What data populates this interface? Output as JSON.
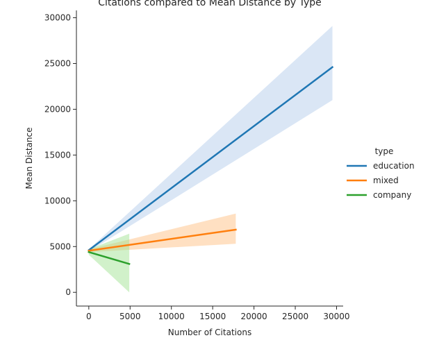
{
  "chart_data": {
    "type": "line",
    "title": "Citations compared to Mean Distance by Type",
    "xlabel": "Number of Citations",
    "ylabel": "Mean Distance",
    "xlim": [
      -1500,
      30800
    ],
    "ylim": [
      -1500,
      30800
    ],
    "x_ticks": [
      0,
      5000,
      10000,
      15000,
      20000,
      25000,
      30000
    ],
    "y_ticks": [
      0,
      5000,
      10000,
      15000,
      20000,
      25000,
      30000
    ],
    "x_tick_labels": [
      "0",
      "5000",
      "10000",
      "15000",
      "20000",
      "25000",
      "30000"
    ],
    "y_tick_labels": [
      "0",
      "5000",
      "10000",
      "15000",
      "20000",
      "25000",
      "30000"
    ],
    "grid": false,
    "legend": {
      "title": "type",
      "placement": "right"
    },
    "series": [
      {
        "name": "education",
        "color": "#1f77b4",
        "fill_color": "#aec7e8",
        "line": [
          [
            0,
            4600
          ],
          [
            29500,
            24600
          ]
        ],
        "band_upper": [
          [
            0,
            4700
          ],
          [
            29500,
            29100
          ]
        ],
        "band_lower": [
          [
            0,
            4450
          ],
          [
            29500,
            21000
          ]
        ]
      },
      {
        "name": "mixed",
        "color": "#ff7f0e",
        "fill_color": "#ffbb78",
        "line": [
          [
            0,
            4550
          ],
          [
            17800,
            6850
          ]
        ],
        "band_upper": [
          [
            0,
            4700
          ],
          [
            17800,
            8600
          ]
        ],
        "band_lower": [
          [
            0,
            4400
          ],
          [
            17800,
            5300
          ]
        ]
      },
      {
        "name": "company",
        "color": "#2ca02c",
        "fill_color": "#98df8a",
        "line": [
          [
            0,
            4400
          ],
          [
            4900,
            3100
          ]
        ],
        "band_upper": [
          [
            0,
            4700
          ],
          [
            4900,
            6400
          ]
        ],
        "band_lower": [
          [
            0,
            4100
          ],
          [
            4900,
            0
          ]
        ]
      }
    ]
  }
}
